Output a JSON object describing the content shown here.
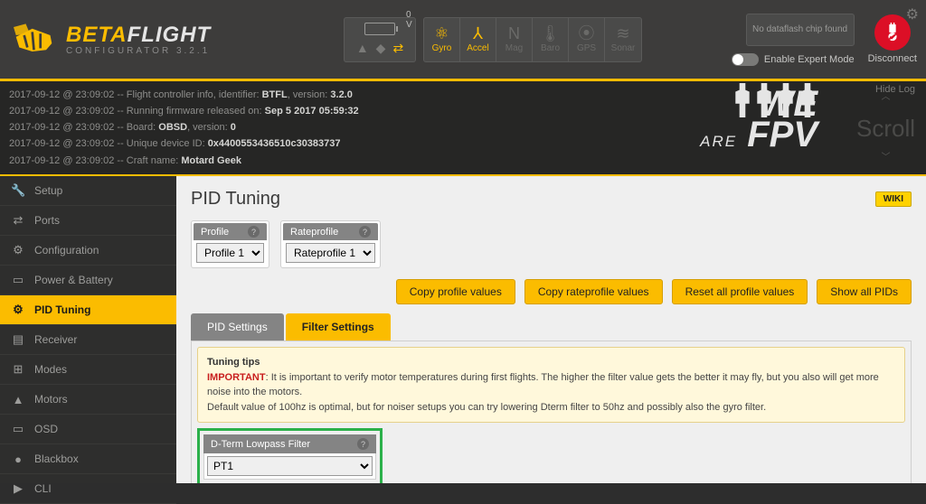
{
  "header": {
    "logo_beta": "BETA",
    "logo_flight": "FLIGHT",
    "sub": "CONFIGURATOR  3.2.1",
    "voltage": "0 V",
    "sensors": [
      {
        "label": "Gyro",
        "active": true,
        "glyph": "⚛"
      },
      {
        "label": "Accel",
        "active": true,
        "glyph": "⅄"
      },
      {
        "label": "Mag",
        "active": false,
        "glyph": "N"
      },
      {
        "label": "Baro",
        "active": false,
        "glyph": "🌡"
      },
      {
        "label": "GPS",
        "active": false,
        "glyph": "⦿"
      },
      {
        "label": "Sonar",
        "active": false,
        "glyph": "≋"
      }
    ],
    "dataflash": "No dataflash chip found",
    "expert_label": "Enable Expert Mode",
    "disconnect": "Disconnect"
  },
  "log": {
    "lines": [
      {
        "ts": "2017-09-12 @ 23:09:02",
        "txt": "Flight controller info, identifier: ",
        "b1": "BTFL",
        "mid": ", version: ",
        "b2": "3.2.0"
      },
      {
        "ts": "2017-09-12 @ 23:09:02",
        "txt": "Running firmware released on: ",
        "b1": "Sep 5 2017 05:59:32",
        "mid": "",
        "b2": ""
      },
      {
        "ts": "2017-09-12 @ 23:09:02",
        "txt": "Board: ",
        "b1": "OBSD",
        "mid": ", version: ",
        "b2": "0"
      },
      {
        "ts": "2017-09-12 @ 23:09:02",
        "txt": "Unique device ID: ",
        "b1": "0x4400553436510c30383737",
        "mid": "",
        "b2": ""
      },
      {
        "ts": "2017-09-12 @ 23:09:02",
        "txt": "Craft name: ",
        "b1": "Motard Geek",
        "mid": "",
        "b2": ""
      }
    ],
    "hide": "Hide Log",
    "scroll": "Scroll",
    "art_we": "WE",
    "art_are": "ARE",
    "art_fpv": "FPV"
  },
  "sidebar": [
    {
      "label": "Setup",
      "icon": "🔧"
    },
    {
      "label": "Ports",
      "icon": "⇄"
    },
    {
      "label": "Configuration",
      "icon": "⚙"
    },
    {
      "label": "Power & Battery",
      "icon": "▭"
    },
    {
      "label": "PID Tuning",
      "icon": "⚙"
    },
    {
      "label": "Receiver",
      "icon": "▤"
    },
    {
      "label": "Modes",
      "icon": "⊞"
    },
    {
      "label": "Motors",
      "icon": "▲"
    },
    {
      "label": "OSD",
      "icon": "▭"
    },
    {
      "label": "Blackbox",
      "icon": "●"
    },
    {
      "label": "CLI",
      "icon": "▶"
    }
  ],
  "sidebar_active": 4,
  "main": {
    "title": "PID Tuning",
    "wiki": "WIKI",
    "profile": {
      "label": "Profile",
      "value": "Profile 1"
    },
    "rateprofile": {
      "label": "Rateprofile",
      "value": "Rateprofile 1"
    },
    "buttons": {
      "copy_profile": "Copy profile values",
      "copy_rate": "Copy rateprofile values",
      "reset": "Reset all profile values",
      "show_all": "Show all PIDs"
    },
    "tabs": {
      "pid": "PID Settings",
      "filter": "Filter Settings"
    },
    "tips": {
      "head": "Tuning tips",
      "imp": "IMPORTANT",
      "l1": ": It is important to verify motor temperatures during first flights. The higher the filter value gets the better it may fly, but you also will get more noise into the motors.",
      "l2": "Default value of 100hz is optimal, but for noiser setups you can try lowering Dterm filter to 50hz and possibly also the gyro filter."
    },
    "dterm": {
      "label": "D-Term Lowpass Filter",
      "value": "PT1"
    }
  },
  "colors": {
    "accent": "#fbbc00",
    "green": "#2bb04a",
    "red": "#dc0f26"
  }
}
